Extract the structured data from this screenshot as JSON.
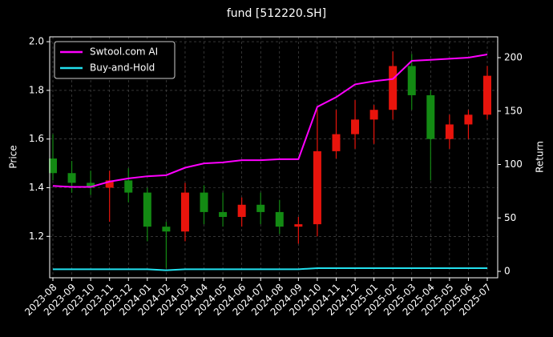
{
  "chart_data": {
    "type": "candlestick",
    "title": "fund [512220.SH]",
    "y_label": "Price",
    "y2_label": "Return",
    "categories": [
      "2023-08",
      "2023-09",
      "2023-10",
      "2023-11",
      "2023-12",
      "2024-01",
      "2024-02",
      "2024-03",
      "2024-04",
      "2024-05",
      "2024-06",
      "2024-07",
      "2024-08",
      "2024-09",
      "2024-10",
      "2024-11",
      "2024-12",
      "2025-01",
      "2025-02",
      "2025-03",
      "2025-04",
      "2025-05",
      "2025-06",
      "2025-07"
    ],
    "open": [
      1.52,
      1.46,
      1.42,
      1.4,
      1.43,
      1.38,
      1.24,
      1.22,
      1.38,
      1.3,
      1.28,
      1.33,
      1.3,
      1.24,
      1.25,
      1.55,
      1.62,
      1.68,
      1.72,
      1.9,
      1.78,
      1.6,
      1.66,
      1.7
    ],
    "high": [
      1.62,
      1.51,
      1.47,
      1.47,
      1.48,
      1.4,
      1.26,
      1.42,
      1.41,
      1.38,
      1.36,
      1.38,
      1.35,
      1.28,
      1.72,
      1.72,
      1.76,
      1.74,
      1.96,
      1.95,
      1.8,
      1.7,
      1.72,
      1.9
    ],
    "low": [
      1.43,
      1.38,
      1.37,
      1.26,
      1.34,
      1.18,
      1.07,
      1.18,
      1.25,
      1.24,
      1.24,
      1.25,
      1.21,
      1.17,
      1.2,
      1.52,
      1.56,
      1.58,
      1.68,
      1.72,
      1.43,
      1.56,
      1.6,
      1.68
    ],
    "close": [
      1.46,
      1.42,
      1.4,
      1.43,
      1.38,
      1.24,
      1.22,
      1.38,
      1.3,
      1.28,
      1.33,
      1.3,
      1.24,
      1.25,
      1.55,
      1.62,
      1.68,
      1.72,
      1.9,
      1.78,
      1.6,
      1.66,
      1.7,
      1.86
    ],
    "up_color": "#e8140c",
    "down_color": "#138a13",
    "series": [
      {
        "name": "Swtool.com AI",
        "color": "#ff00ff",
        "axis": "y2",
        "values": [
          80,
          79,
          79,
          84,
          87,
          89,
          90,
          97,
          101,
          102,
          104,
          104,
          105,
          105,
          154,
          163,
          175,
          178,
          180,
          197,
          198,
          199,
          200,
          203
        ]
      },
      {
        "name": "Buy-and-Hold",
        "color": "#22e0ee",
        "axis": "y2",
        "values": [
          2,
          2,
          2,
          2,
          2,
          2,
          1,
          2,
          2,
          2,
          2,
          2,
          2,
          2,
          3,
          3,
          3,
          3,
          3,
          3,
          3,
          3,
          3,
          3
        ]
      }
    ],
    "ylim": [
      1.03,
      2.02
    ],
    "yticks": [
      1.2,
      1.4,
      1.6,
      1.8,
      {
        "value": 2,
        "label": "2.0"
      }
    ],
    "y2lim": [
      -6,
      219.5
    ],
    "y2ticks": [
      0,
      50,
      100,
      150,
      200
    ],
    "grid": true,
    "legend": "upper left"
  }
}
